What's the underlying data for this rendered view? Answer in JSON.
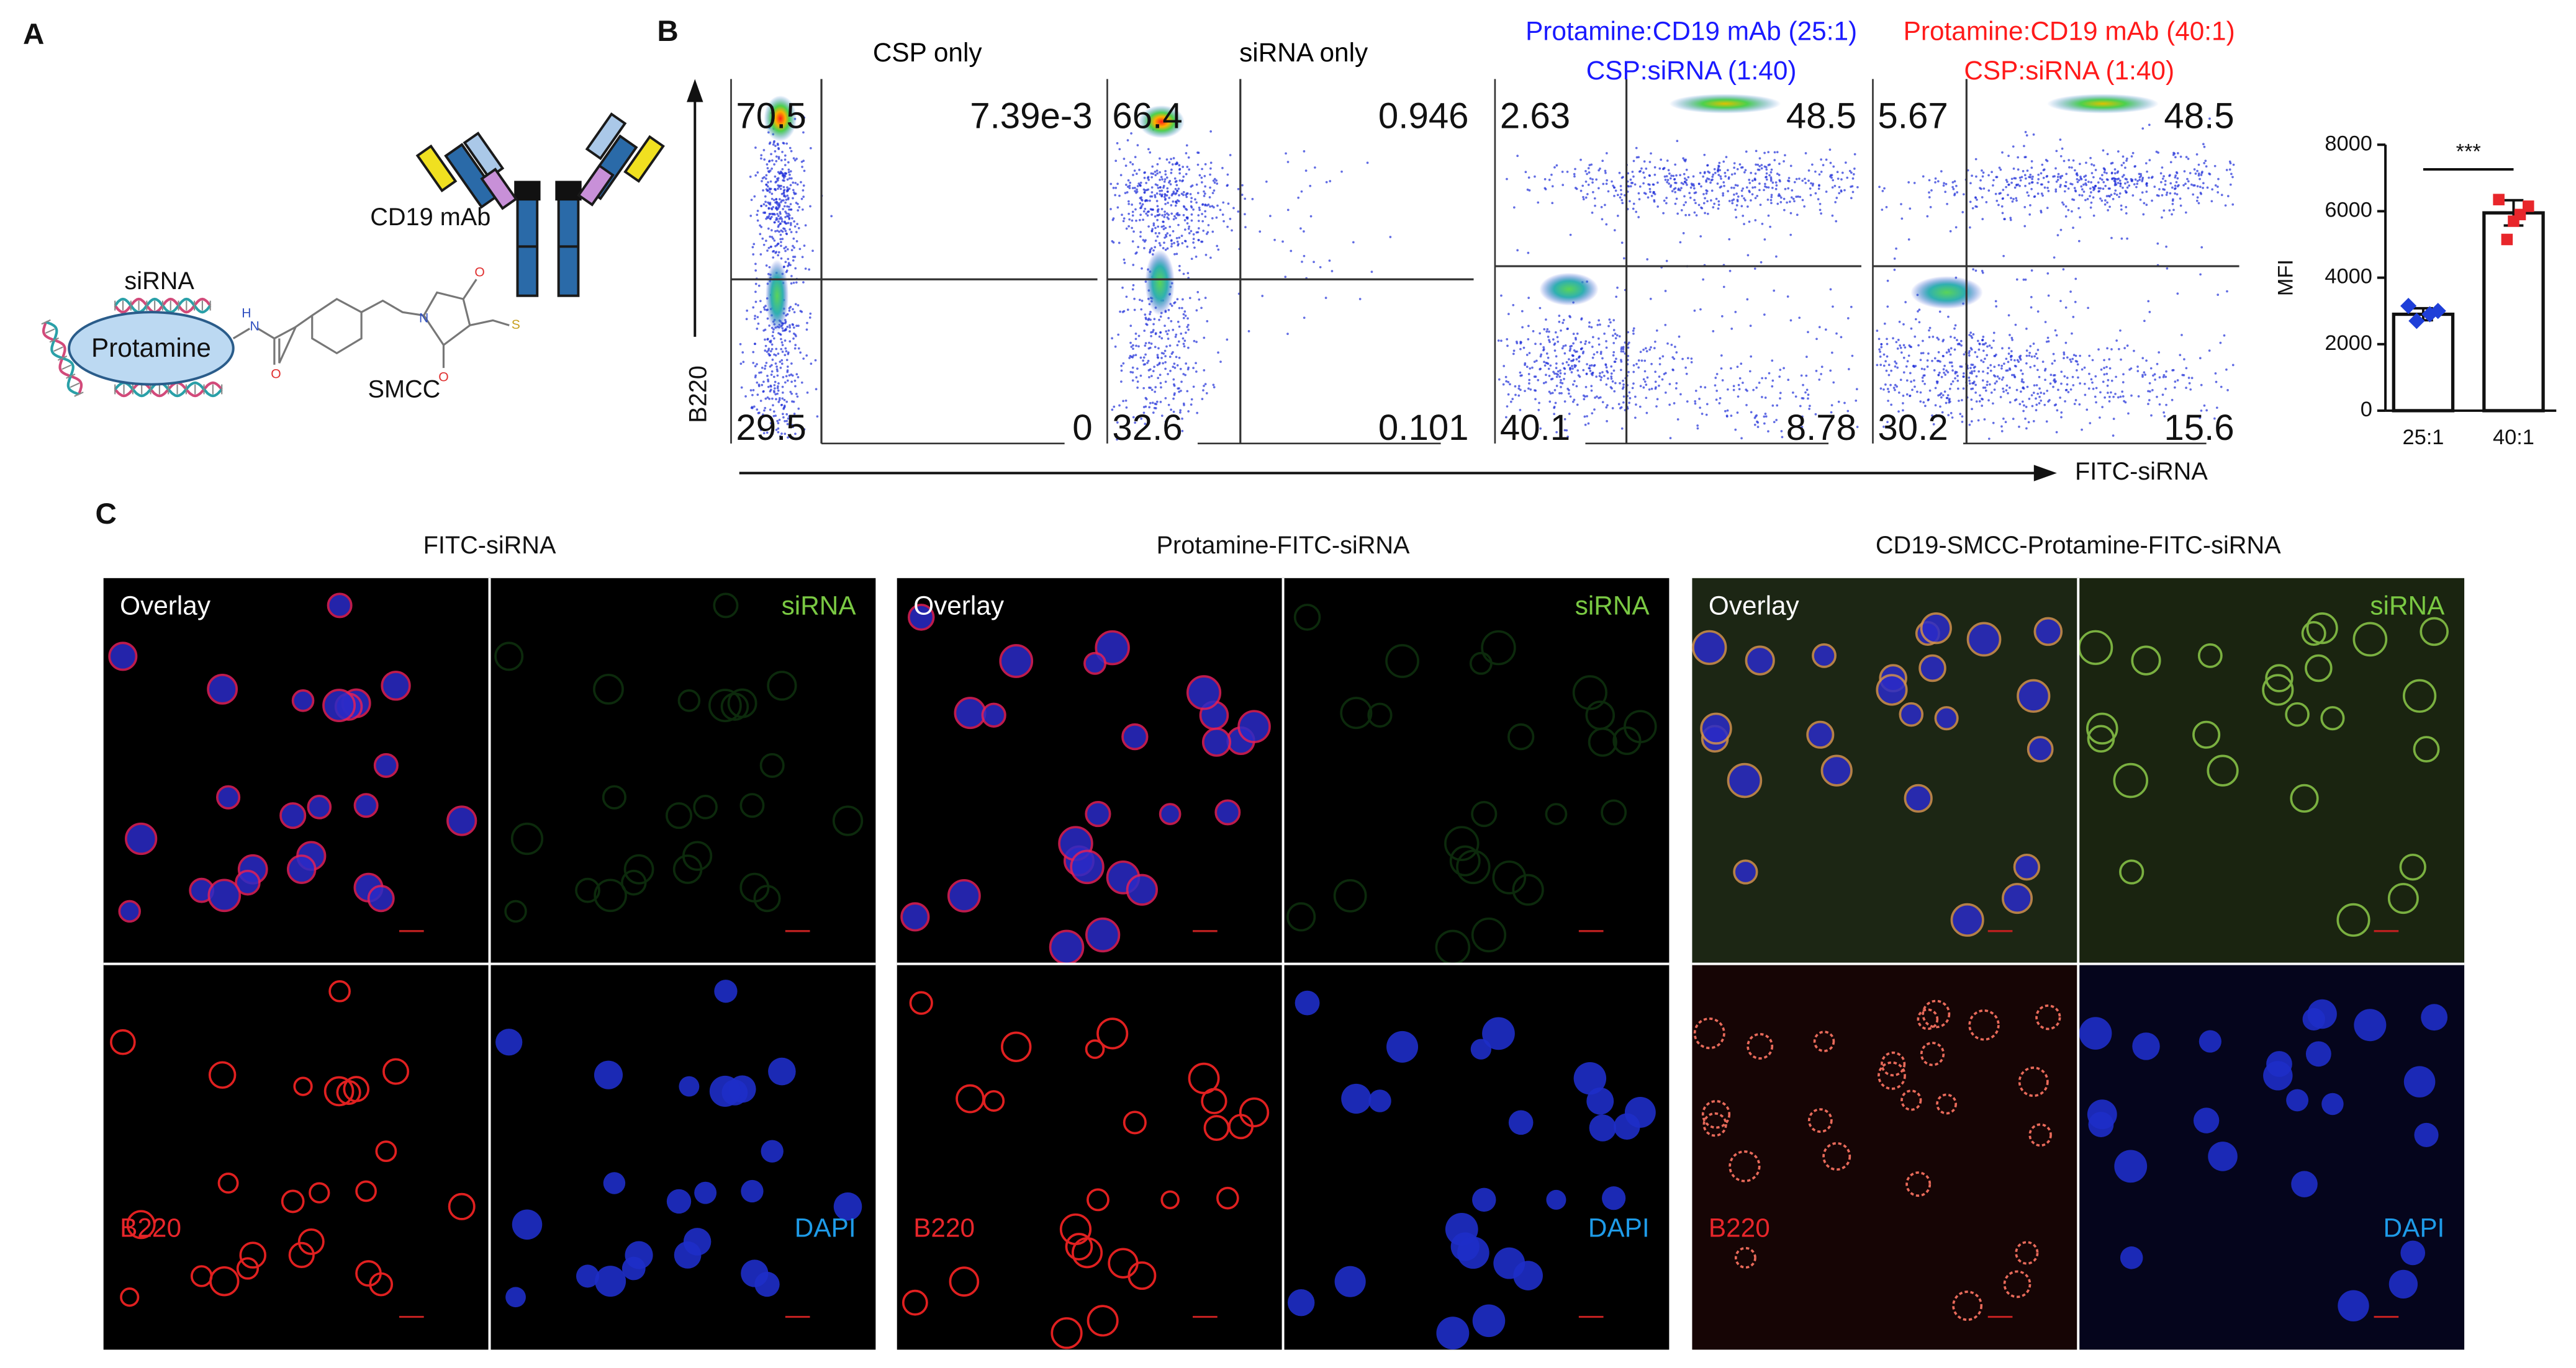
{
  "panel_labels": [
    "A",
    "B",
    "C"
  ],
  "schematic": {
    "sirna": "siRNA",
    "protamine": "Protamine",
    "antibody": "CD19 mAb",
    "linker": "SMCC",
    "atoms": [
      "H",
      "N",
      "O",
      "N",
      "O",
      "O",
      "S"
    ]
  },
  "flow": {
    "x_label": "FITC-siRNA",
    "y_label": "B220",
    "plots": [
      {
        "title": [
          "CSP only"
        ],
        "title_color": "#000000",
        "quadrants": [
          70.5,
          "7.39e-3",
          29.5,
          0
        ]
      },
      {
        "title": [
          "siRNA only"
        ],
        "title_color": "#000000",
        "quadrants": [
          66.4,
          0.946,
          32.6,
          0.101
        ]
      },
      {
        "title": [
          "Protamine:CD19 mAb (25:1)",
          "CSP:siRNA (1:40)"
        ],
        "title_color": "#1a1aff",
        "quadrants": [
          2.63,
          48.5,
          40.1,
          8.78
        ]
      },
      {
        "title": [
          "Protamine:CD19 mAb (40:1)",
          "CSP:siRNA (1:40)"
        ],
        "title_color": "#ff1a1a",
        "quadrants": [
          5.67,
          48.5,
          30.2,
          15.6
        ]
      }
    ]
  },
  "chart_data": {
    "type": "bar",
    "ylabel": "MFI",
    "categories": [
      "25:1",
      "40:1"
    ],
    "values": [
      2900,
      5950
    ],
    "errors": [
      180,
      380
    ],
    "points": [
      [
        3150,
        2900,
        2700,
        3000
      ],
      [
        6350,
        5900,
        5150,
        6150,
        5700
      ]
    ],
    "colors": [
      "#1f3fd8",
      "#e8262b"
    ],
    "ylim": [
      0,
      8000
    ],
    "yticks": [
      0,
      2000,
      4000,
      6000,
      8000
    ],
    "annotation": "***"
  },
  "microscopy": {
    "panels": [
      {
        "title": "FITC-siRNA",
        "labels": [
          "Overlay",
          "siRNA",
          "B220",
          "DAPI"
        ]
      },
      {
        "title": "Protamine-FITC-siRNA",
        "labels": [
          "Overlay",
          "siRNA",
          "B220",
          "DAPI"
        ]
      },
      {
        "title": "CD19-SMCC-Protamine-FITC-siRNA",
        "labels": [
          "Overlay",
          "siRNA",
          "B220",
          "DAPI"
        ]
      }
    ]
  }
}
